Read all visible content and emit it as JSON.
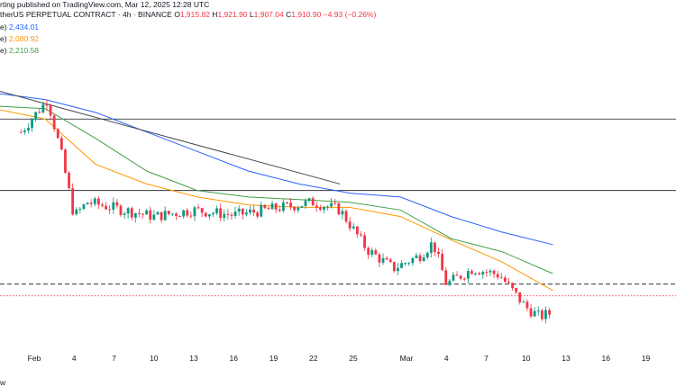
{
  "header": {
    "published": "rting published on TradingView.com, Mar 12, 2025 12:28 UTC",
    "symbol_line": "therUS PERPETUAL CONTRACT · 4h · BINANCE",
    "ohlc": {
      "o_label": "O",
      "o": "1,915.82",
      "h_label": "H",
      "h": "1,921.90",
      "l_label": "L",
      "l": "1,907.04",
      "c_label": "C",
      "c": "1,910.90",
      "change": "−4.93 (−0.26%)"
    },
    "moving_averages": [
      {
        "label_fragment": "e)",
        "value": "2,434.01",
        "color": "#2962ff"
      },
      {
        "label_fragment": "e)",
        "value": "2,080.92",
        "color": "#ff9800"
      },
      {
        "label_fragment": "e)",
        "value": "2,210.58",
        "color": "#43a047"
      }
    ]
  },
  "footer": {
    "text": "w"
  },
  "colors": {
    "up": "#089981",
    "down": "#f23645",
    "ema_blue": "#2962ff",
    "ema_orange": "#ff9800",
    "ema_green": "#43a047"
  },
  "chart_data": {
    "type": "candlestick",
    "title": "",
    "x_tick_labels": [
      "Feb",
      "4",
      "7",
      "10",
      "13",
      "16",
      "19",
      "22",
      "25",
      "Mar",
      "4",
      "7",
      "10",
      "13",
      "16",
      "19"
    ],
    "ylim": [
      1650,
      3900
    ],
    "grid": false,
    "horizontal_levels": [
      {
        "style": "solid",
        "value": 3400
      },
      {
        "style": "solid",
        "value": 2850
      },
      {
        "style": "dashed",
        "value": 2130
      },
      {
        "style": "dotted-red",
        "value": 2040
      }
    ],
    "trendline": {
      "from": [
        "2025-01-31",
        3530
      ],
      "to": [
        "2025-02-24",
        2900
      ]
    },
    "key_points": [
      {
        "x": "2025-01-31",
        "close": 3300
      },
      {
        "x": "2025-02-02",
        "close": 3550
      },
      {
        "x": "2025-02-03",
        "close": 3150
      },
      {
        "x": "2025-02-04",
        "close": 2650
      },
      {
        "x": "2025-02-05",
        "close": 2760
      },
      {
        "x": "2025-02-10",
        "close": 2650
      },
      {
        "x": "2025-02-13",
        "close": 2700
      },
      {
        "x": "2025-02-16",
        "close": 2660
      },
      {
        "x": "2025-02-19",
        "close": 2710
      },
      {
        "x": "2025-02-22",
        "close": 2760
      },
      {
        "x": "2025-02-24",
        "close": 2700
      },
      {
        "x": "2025-02-26",
        "close": 2400
      },
      {
        "x": "2025-02-28",
        "close": 2250
      },
      {
        "x": "2025-03-02",
        "close": 2350
      },
      {
        "x": "2025-03-03",
        "close": 2450
      },
      {
        "x": "2025-03-04",
        "close": 2130
      },
      {
        "x": "2025-03-06",
        "close": 2250
      },
      {
        "x": "2025-03-08",
        "close": 2200
      },
      {
        "x": "2025-03-10",
        "close": 1950
      },
      {
        "x": "2025-03-11",
        "close": 1880
      },
      {
        "x": "2025-03-12",
        "close": 1910
      }
    ],
    "series": [
      {
        "name": "",
        "color": "#2962ff",
        "values": [
          3600,
          3550,
          3450,
          3300,
          3150,
          3000,
          2900,
          2830,
          2800,
          2650,
          2530,
          2434
        ]
      },
      {
        "name": "",
        "color": "#ff9800",
        "values": [
          3480,
          3400,
          3050,
          2900,
          2800,
          2740,
          2720,
          2720,
          2650,
          2470,
          2300,
          2081
        ]
      },
      {
        "name": "",
        "color": "#43a047",
        "values": [
          3500,
          3480,
          3250,
          3000,
          2850,
          2800,
          2780,
          2760,
          2700,
          2480,
          2380,
          2211
        ]
      }
    ]
  }
}
